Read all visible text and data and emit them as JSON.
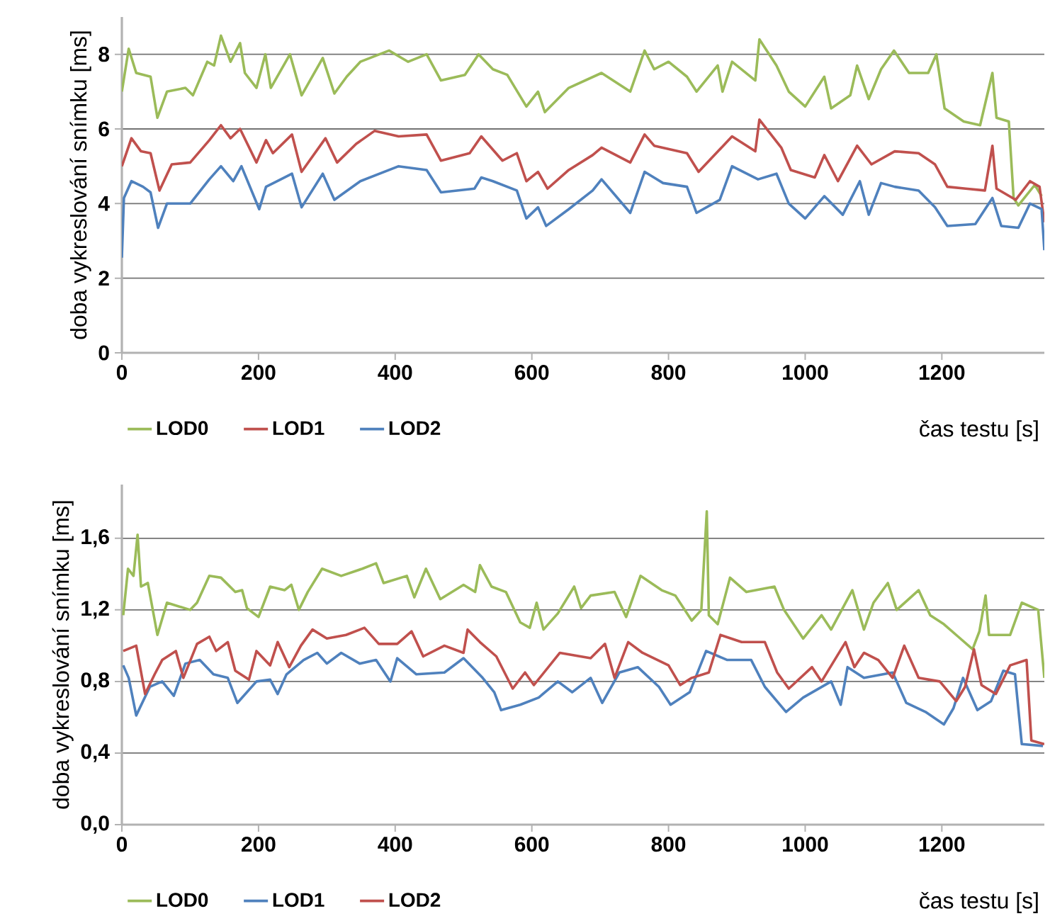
{
  "chart_data": [
    {
      "type": "line",
      "xlabel": "čas testu [s]",
      "ylabel": "doba vykreslování snímku [ms]",
      "xlim": [
        0,
        1350
      ],
      "ylim": [
        0,
        9
      ],
      "xticks": [
        0,
        200,
        400,
        600,
        800,
        1000,
        1200
      ],
      "yticks": [
        0,
        2,
        4,
        6,
        8
      ],
      "grid": "y",
      "legend": "bottom",
      "series": [
        {
          "name": "LOD0",
          "color": "#9bbb59",
          "x": [
            0,
            10,
            21,
            42,
            52,
            66,
            93,
            104,
            125,
            135,
            145,
            159,
            173,
            180,
            197,
            210,
            218,
            246,
            263,
            294,
            311,
            329,
            349,
            391,
            419,
            446,
            467,
            502,
            522,
            543,
            564,
            592,
            609,
            619,
            654,
            702,
            744,
            765,
            779,
            800,
            827,
            841,
            872,
            879,
            893,
            927,
            933,
            958,
            976,
            1000,
            1028,
            1038,
            1066,
            1076,
            1093,
            1111,
            1130,
            1152,
            1180,
            1192,
            1204,
            1232,
            1256,
            1274,
            1280,
            1298,
            1305,
            1312,
            1336,
            1346
          ],
          "values": [
            7.0,
            8.15,
            7.5,
            7.4,
            6.3,
            7.0,
            7.1,
            6.9,
            7.8,
            7.7,
            8.5,
            7.8,
            8.3,
            7.5,
            7.1,
            8.0,
            7.1,
            8.0,
            6.9,
            7.9,
            6.95,
            7.4,
            7.8,
            8.1,
            7.8,
            8.0,
            7.3,
            7.45,
            8.0,
            7.6,
            7.45,
            6.6,
            7.0,
            6.45,
            7.1,
            7.5,
            7.0,
            8.1,
            7.6,
            7.8,
            7.4,
            7.0,
            7.7,
            7.0,
            7.8,
            7.3,
            8.4,
            7.7,
            7.0,
            6.6,
            7.4,
            6.55,
            6.9,
            7.7,
            6.8,
            7.6,
            8.1,
            7.5,
            7.5,
            8.0,
            6.55,
            6.2,
            6.1,
            7.5,
            6.3,
            6.2,
            4.15,
            3.95,
            4.5,
            4.2
          ]
        },
        {
          "name": "LOD1",
          "color": "#c0504d",
          "x": [
            0,
            14,
            28,
            42,
            55,
            73,
            100,
            128,
            145,
            159,
            173,
            197,
            211,
            221,
            249,
            263,
            298,
            315,
            343,
            370,
            405,
            446,
            467,
            509,
            526,
            557,
            578,
            592,
            609,
            623,
            654,
            689,
            702,
            744,
            765,
            779,
            827,
            844,
            893,
            927,
            933,
            965,
            979,
            1014,
            1028,
            1048,
            1076,
            1097,
            1131,
            1166,
            1190,
            1208,
            1235,
            1263,
            1274,
            1280,
            1308,
            1329,
            1343,
            1350
          ],
          "values": [
            5.0,
            5.75,
            5.4,
            5.35,
            4.35,
            5.05,
            5.1,
            5.7,
            6.1,
            5.75,
            6.0,
            5.1,
            5.7,
            5.35,
            5.85,
            4.85,
            5.75,
            5.1,
            5.6,
            5.95,
            5.8,
            5.85,
            5.15,
            5.35,
            5.8,
            5.15,
            5.35,
            4.6,
            4.85,
            4.4,
            4.9,
            5.3,
            5.5,
            5.1,
            5.85,
            5.55,
            5.35,
            4.85,
            5.8,
            5.4,
            6.25,
            5.5,
            4.9,
            4.7,
            5.3,
            4.6,
            5.55,
            5.05,
            5.4,
            5.35,
            5.05,
            4.45,
            4.4,
            4.35,
            5.55,
            4.4,
            4.1,
            4.6,
            4.45,
            3.5
          ]
        },
        {
          "name": "LOD2",
          "color": "#4f81bd",
          "x": [
            0,
            3,
            14,
            31,
            42,
            53,
            66,
            100,
            128,
            145,
            163,
            175,
            201,
            211,
            249,
            263,
            294,
            311,
            349,
            405,
            446,
            467,
            516,
            526,
            543,
            578,
            592,
            609,
            621,
            654,
            689,
            702,
            744,
            765,
            792,
            827,
            841,
            875,
            893,
            931,
            958,
            976,
            1000,
            1028,
            1055,
            1080,
            1093,
            1111,
            1131,
            1166,
            1190,
            1208,
            1249,
            1274,
            1287,
            1312,
            1329,
            1346,
            1350
          ],
          "values": [
            2.55,
            4.15,
            4.6,
            4.45,
            4.3,
            3.35,
            4.0,
            4.0,
            4.65,
            5.0,
            4.6,
            5.0,
            3.85,
            4.45,
            4.8,
            3.9,
            4.8,
            4.1,
            4.6,
            5.0,
            4.9,
            4.3,
            4.4,
            4.7,
            4.6,
            4.35,
            3.6,
            3.9,
            3.4,
            3.85,
            4.35,
            4.65,
            3.75,
            4.85,
            4.55,
            4.45,
            3.75,
            4.1,
            5.0,
            4.65,
            4.8,
            4.0,
            3.6,
            4.2,
            3.7,
            4.6,
            3.7,
            4.55,
            4.45,
            4.35,
            3.9,
            3.4,
            3.45,
            4.15,
            3.4,
            3.35,
            4.0,
            3.85,
            2.75
          ]
        }
      ]
    },
    {
      "type": "line",
      "xlabel": "čas testu [s]",
      "ylabel": "doba vykreslování snímku [ms]",
      "xlim": [
        0,
        1350
      ],
      "ylim": [
        0,
        1.9
      ],
      "xticks": [
        0,
        200,
        400,
        600,
        800,
        1000,
        1200
      ],
      "yticks": [
        {
          "value": 0,
          "label": "0,0"
        },
        {
          "value": 0.4,
          "label": "0,4"
        },
        {
          "value": 0.8,
          "label": "0,8"
        },
        {
          "value": 1.2,
          "label": "1,2"
        },
        {
          "value": 1.6,
          "label": "1,6"
        }
      ],
      "grid": "y",
      "legend": "bottom",
      "series": [
        {
          "name": "LOD0",
          "color": "#9bbb59",
          "x": [
            2,
            5,
            9,
            17,
            23,
            28,
            38,
            52,
            66,
            100,
            110,
            128,
            145,
            166,
            176,
            183,
            200,
            217,
            238,
            248,
            255,
            259,
            272,
            293,
            321,
            352,
            372,
            383,
            417,
            428,
            445,
            466,
            500,
            517,
            524,
            541,
            562,
            583,
            597,
            607,
            617,
            638,
            662,
            672,
            677,
            686,
            721,
            738,
            759,
            790,
            810,
            834,
            848,
            856,
            859,
            872,
            890,
            914,
            955,
            969,
            997,
            1024,
            1038,
            1069,
            1086,
            1100,
            1121,
            1134,
            1166,
            1183,
            1203,
            1224,
            1245,
            1255,
            1264,
            1269,
            1300,
            1317,
            1341,
            1350
          ],
          "values": [
            1.17,
            null,
            1.43,
            1.39,
            1.62,
            1.33,
            1.35,
            1.06,
            1.24,
            1.2,
            1.24,
            1.39,
            1.38,
            1.3,
            1.31,
            1.21,
            1.16,
            1.33,
            1.31,
            1.34,
            null,
            1.2,
            1.3,
            1.43,
            1.39,
            1.43,
            1.46,
            1.35,
            1.39,
            1.27,
            1.43,
            1.26,
            1.34,
            1.3,
            1.45,
            1.33,
            1.3,
            1.13,
            1.1,
            1.24,
            1.09,
            1.18,
            1.33,
            1.21,
            null,
            1.28,
            1.3,
            1.16,
            1.39,
            1.31,
            1.28,
            1.14,
            1.2,
            1.75,
            1.17,
            1.12,
            1.38,
            1.3,
            1.33,
            1.2,
            1.04,
            1.17,
            1.09,
            1.31,
            1.09,
            1.24,
            1.35,
            1.2,
            1.31,
            1.17,
            1.12,
            1.05,
            0.98,
            1.08,
            1.28,
            1.06,
            1.06,
            1.24,
            1.2,
            0.82
          ]
        },
        {
          "name": "LOD1",
          "color": "#4f81bd",
          "x": [
            2,
            10,
            21,
            41,
            59,
            76,
            93,
            114,
            134,
            155,
            169,
            197,
            217,
            228,
            241,
            266,
            286,
            300,
            321,
            348,
            372,
            393,
            403,
            431,
            472,
            500,
            528,
            545,
            555,
            583,
            610,
            638,
            659,
            686,
            703,
            728,
            755,
            786,
            803,
            831,
            855,
            886,
            921,
            941,
            972,
            997,
            1038,
            1052,
            1062,
            1086,
            1128,
            1148,
            1176,
            1203,
            1217,
            1231,
            1252,
            1272,
            1290,
            1307,
            1317,
            1348
          ],
          "values": [
            0.89,
            0.82,
            0.61,
            0.77,
            0.8,
            0.72,
            0.9,
            0.92,
            0.84,
            0.82,
            0.68,
            0.8,
            0.81,
            0.73,
            0.84,
            0.92,
            0.96,
            0.9,
            0.96,
            0.9,
            0.92,
            0.8,
            0.93,
            0.84,
            0.85,
            0.93,
            0.82,
            0.74,
            0.64,
            0.67,
            0.71,
            0.8,
            0.74,
            0.82,
            0.68,
            0.85,
            0.88,
            0.77,
            0.67,
            0.74,
            0.97,
            0.92,
            0.92,
            0.77,
            0.63,
            0.71,
            0.8,
            0.67,
            0.88,
            0.82,
            0.85,
            0.68,
            0.63,
            0.56,
            0.65,
            0.82,
            0.64,
            0.69,
            0.86,
            0.84,
            0.45,
            0.44
          ]
        },
        {
          "name": "LOD2",
          "color": "#c0504d",
          "x": [
            2,
            21,
            34,
            48,
            59,
            79,
            90,
            110,
            128,
            138,
            155,
            166,
            186,
            197,
            217,
            228,
            245,
            262,
            279,
            300,
            328,
            355,
            376,
            403,
            424,
            441,
            472,
            500,
            506,
            524,
            548,
            572,
            590,
            603,
            641,
            686,
            707,
            721,
            741,
            762,
            800,
            817,
            834,
            859,
            876,
            907,
            941,
            959,
            976,
            1010,
            1024,
            1059,
            1072,
            1086,
            1107,
            1128,
            1145,
            1166,
            1197,
            1221,
            1234,
            1247,
            1258,
            1279,
            1300,
            1324,
            1331,
            1350
          ],
          "values": [
            0.97,
            1.0,
            0.73,
            0.84,
            0.92,
            0.97,
            0.82,
            1.01,
            1.05,
            0.97,
            1.02,
            0.86,
            0.81,
            0.97,
            0.89,
            1.02,
            0.88,
            1.0,
            1.09,
            1.04,
            1.06,
            1.1,
            1.01,
            1.01,
            1.08,
            0.94,
            1.0,
            0.96,
            1.09,
            1.02,
            0.94,
            0.76,
            0.85,
            0.78,
            0.96,
            0.93,
            1.01,
            0.82,
            1.02,
            0.96,
            0.89,
            0.78,
            0.82,
            0.85,
            1.06,
            1.02,
            1.02,
            0.85,
            0.76,
            0.88,
            0.8,
            1.02,
            0.88,
            0.96,
            0.92,
            0.82,
            1.0,
            0.82,
            0.8,
            0.69,
            0.77,
            0.98,
            0.78,
            0.73,
            0.89,
            0.92,
            0.47,
            0.45
          ]
        }
      ]
    }
  ]
}
